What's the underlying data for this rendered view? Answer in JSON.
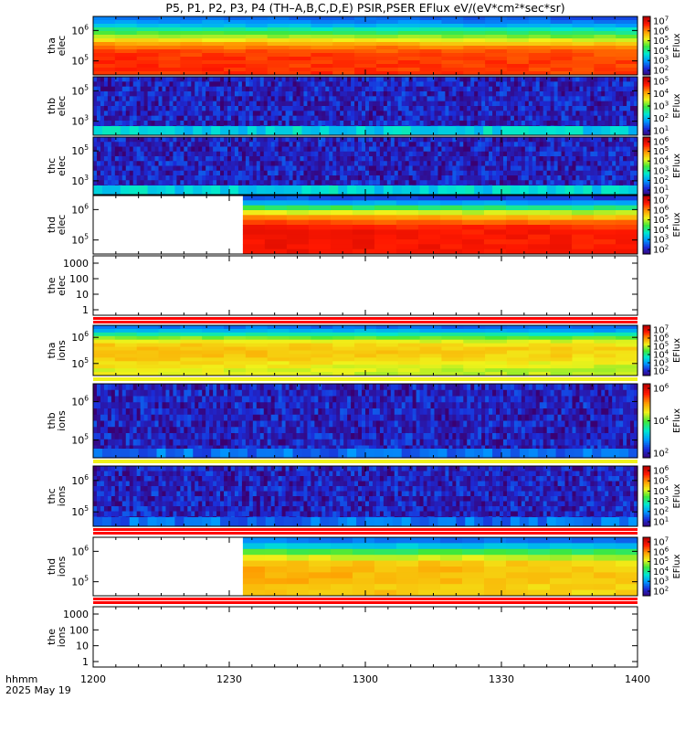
{
  "title": "P5, P1, P2, P3, P4 (TH–A,B,C,D,E) PSIR,PSER EFlux eV/(eV*cm²*sec*sr)",
  "footer": {
    "time_label": "hhmm",
    "date_label": "2025 May 19"
  },
  "colorbar_label": "EFlux",
  "chart_data": {
    "type": "heatmap",
    "x_axis": {
      "ticks": [
        "1200",
        "1230",
        "1300",
        "1330",
        "1400"
      ],
      "range": [
        "12:00",
        "14:00"
      ],
      "label": "hhmm"
    },
    "colormap": [
      "#3a0072",
      "#1b2cd8",
      "#0098ff",
      "#00e8d0",
      "#3fe83a",
      "#f0f21a",
      "#ff9a00",
      "#ff1800",
      "#b80000"
    ],
    "panels": [
      {
        "probe": "tha",
        "species": "elec",
        "ylabel": [
          "tha",
          "elec"
        ],
        "log_scale": true,
        "y_tick_exponents": [
          6,
          5
        ],
        "colorbar_exponents": [
          7,
          6,
          5,
          4,
          3,
          2
        ],
        "data_start": "12:00",
        "pattern": "electron_full",
        "profile": [
          0.22,
          0.26,
          0.32,
          0.42,
          0.5,
          0.58,
          0.66,
          0.74,
          0.79,
          0.83,
          0.85,
          0.86,
          0.86,
          0.86,
          0.86,
          0.86
        ]
      },
      {
        "probe": "thb",
        "species": "elec",
        "ylabel": [
          "thb",
          "elec"
        ],
        "log_scale": true,
        "y_tick_exponents": [
          5,
          3
        ],
        "colorbar_exponents": [
          5,
          4,
          3,
          2,
          1
        ],
        "data_start": "12:00",
        "pattern": "noise",
        "bottom_band": "cyan"
      },
      {
        "probe": "thc",
        "species": "elec",
        "ylabel": [
          "thc",
          "elec"
        ],
        "log_scale": true,
        "y_tick_exponents": [
          5,
          3
        ],
        "colorbar_exponents": [
          6,
          5,
          4,
          3,
          2,
          1
        ],
        "data_start": "12:00",
        "pattern": "noise",
        "bottom_band": "cyan"
      },
      {
        "probe": "thd",
        "species": "elec",
        "ylabel": [
          "thd",
          "elec"
        ],
        "log_scale": true,
        "y_tick_exponents": [
          6,
          5
        ],
        "colorbar_exponents": [
          7,
          6,
          5,
          4,
          3,
          2
        ],
        "data_start": "12:33",
        "pattern": "electron_full",
        "profile": [
          0.18,
          0.3,
          0.48,
          0.62,
          0.75,
          0.84,
          0.88,
          0.9,
          0.9,
          0.9,
          0.9,
          0.9
        ]
      },
      {
        "probe": "the",
        "species": "elec",
        "ylabel": [
          "the",
          "elec"
        ],
        "log_scale": true,
        "y_ticks": [
          "1000",
          "100",
          "10",
          "1"
        ],
        "colorbar": false,
        "data_start": null,
        "pattern": "empty",
        "bottom_stripes": [
          "#ff0000",
          "#ff0000"
        ]
      },
      {
        "probe": "tha",
        "species": "ions",
        "ylabel": [
          "tha",
          "ions"
        ],
        "log_scale": true,
        "y_tick_exponents": [
          6,
          5
        ],
        "colorbar_exponents": [
          7,
          6,
          5,
          4,
          3,
          2
        ],
        "data_start": "12:00",
        "pattern": "ion_full",
        "profile": [
          0.22,
          0.3,
          0.42,
          0.55,
          0.64,
          0.68,
          0.7,
          0.7,
          0.7,
          0.68,
          0.66,
          0.64,
          0.62,
          0.62
        ],
        "bottom_stripes": [
          "#f0f21a"
        ]
      },
      {
        "probe": "thb",
        "species": "ions",
        "ylabel": [
          "thb",
          "ions"
        ],
        "log_scale": true,
        "y_tick_exponents": [
          6,
          5
        ],
        "colorbar_exponents": [
          6,
          4,
          2
        ],
        "data_start": "12:00",
        "pattern": "noise",
        "bottom_band": "blue",
        "bottom_stripes": [
          "#f0f21a"
        ]
      },
      {
        "probe": "thc",
        "species": "ions",
        "ylabel": [
          "thc",
          "ions"
        ],
        "log_scale": true,
        "y_tick_exponents": [
          6,
          5
        ],
        "colorbar_exponents": [
          6,
          5,
          4,
          3,
          2,
          1
        ],
        "data_start": "12:00",
        "pattern": "noise",
        "bottom_band": "blue",
        "bottom_stripes": [
          "#ff0000",
          "#ff0000"
        ]
      },
      {
        "probe": "thd",
        "species": "ions",
        "ylabel": [
          "thd",
          "ions"
        ],
        "log_scale": true,
        "y_tick_exponents": [
          6,
          5
        ],
        "colorbar_exponents": [
          7,
          6,
          5,
          4,
          3,
          2
        ],
        "data_start": "12:33",
        "pattern": "ion_full",
        "profile": [
          0.22,
          0.34,
          0.5,
          0.62,
          0.7,
          0.72,
          0.72,
          0.72,
          0.7,
          0.7
        ],
        "bottom_stripes": [
          "#ff0000",
          "#ff0000"
        ]
      },
      {
        "probe": "the",
        "species": "ions",
        "ylabel": [
          "the",
          "ions"
        ],
        "log_scale": true,
        "y_ticks": [
          "1000",
          "100",
          "10",
          "1"
        ],
        "colorbar": false,
        "data_start": null,
        "pattern": "empty"
      }
    ]
  }
}
